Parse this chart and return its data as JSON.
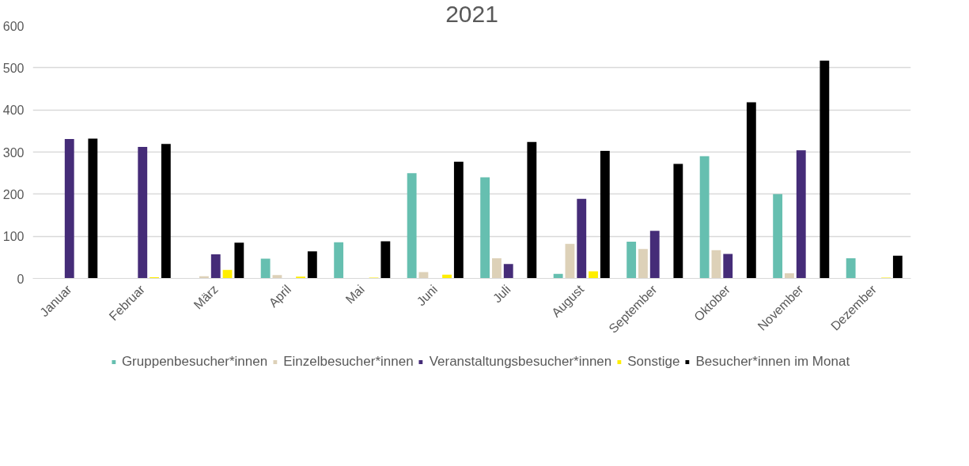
{
  "chart_data": {
    "type": "bar",
    "title": "2021",
    "categories": [
      "Januar",
      "Februar",
      "März",
      "April",
      "Mai",
      "Juni",
      "Juli",
      "August",
      "September",
      "Oktober",
      "November",
      "Dezember"
    ],
    "series": [
      {
        "name": "Gruppenbesucher*innen",
        "color": "#66bfb0",
        "values": [
          null,
          null,
          null,
          47,
          86,
          250,
          240,
          11,
          87,
          290,
          200,
          48
        ]
      },
      {
        "name": "Einzelbesucher*innen",
        "color": "#ddd1b8",
        "values": [
          null,
          1,
          5,
          8,
          null,
          15,
          48,
          82,
          70,
          67,
          12,
          null
        ]
      },
      {
        "name": "Veranstaltungsbesucher*innen",
        "color": "#452c78",
        "values": [
          331,
          312,
          57,
          null,
          null,
          null,
          34,
          189,
          113,
          58,
          304,
          null
        ]
      },
      {
        "name": "Sonstige",
        "color": "#ffee00",
        "values": [
          null,
          3,
          20,
          4,
          2,
          9,
          null,
          17,
          null,
          null,
          null,
          2
        ]
      },
      {
        "name": "Besucher*innen im Monat",
        "color": "#000000",
        "values": [
          332,
          319,
          85,
          64,
          88,
          277,
          324,
          303,
          272,
          418,
          517,
          54
        ]
      }
    ],
    "ylim": [
      0,
      600
    ],
    "yticks": [
      0,
      100,
      200,
      300,
      400,
      500,
      600
    ],
    "grid": "y",
    "legend": "bottom"
  }
}
